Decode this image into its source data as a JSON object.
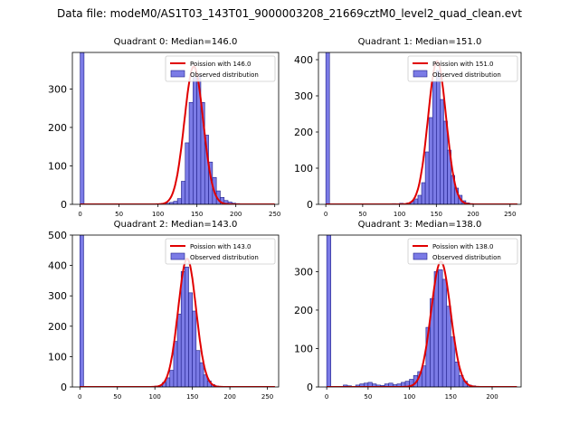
{
  "suptitle": "Data file: modeM0/AS1T03_143T01_9000003208_21669cztM0_level2_quad_clean.evt",
  "colors": {
    "bar_fill": "#7b7be6",
    "bar_edge": "#1f1f8a",
    "curve": "#e00000"
  },
  "chart_data": [
    {
      "type": "bar",
      "title": "Quadrant 0: Median=146.0",
      "median": 146.0,
      "xlim": [
        -10,
        255
      ],
      "ylim": [
        0,
        395
      ],
      "xticks": [
        0,
        50,
        100,
        150,
        200,
        250
      ],
      "yticks": [
        0,
        100,
        200,
        300
      ],
      "bin_width": 5,
      "zero_bin_value": 395,
      "bins": [
        [
          110,
          3
        ],
        [
          115,
          5
        ],
        [
          120,
          8
        ],
        [
          125,
          15
        ],
        [
          130,
          60
        ],
        [
          135,
          160
        ],
        [
          140,
          265
        ],
        [
          145,
          330
        ],
        [
          150,
          335
        ],
        [
          155,
          265
        ],
        [
          160,
          180
        ],
        [
          165,
          110
        ],
        [
          170,
          70
        ],
        [
          175,
          35
        ],
        [
          180,
          18
        ],
        [
          185,
          10
        ],
        [
          190,
          6
        ],
        [
          195,
          3
        ],
        [
          200,
          2
        ]
      ],
      "legend": [
        "Poission with 146.0",
        "Observed distribution"
      ],
      "legend_loc": "upper right"
    },
    {
      "type": "bar",
      "title": "Quadrant 1: Median=151.0",
      "median": 151.0,
      "xlim": [
        -10,
        265
      ],
      "ylim": [
        0,
        420
      ],
      "xticks": [
        0,
        50,
        100,
        150,
        200,
        250
      ],
      "yticks": [
        0,
        100,
        200,
        300,
        400
      ],
      "bin_width": 5,
      "zero_bin_value": 420,
      "bins": [
        [
          90,
          2
        ],
        [
          100,
          3
        ],
        [
          110,
          4
        ],
        [
          115,
          8
        ],
        [
          120,
          15
        ],
        [
          125,
          25
        ],
        [
          130,
          60
        ],
        [
          135,
          145
        ],
        [
          140,
          240
        ],
        [
          145,
          340
        ],
        [
          150,
          370
        ],
        [
          155,
          290
        ],
        [
          160,
          230
        ],
        [
          165,
          150
        ],
        [
          170,
          80
        ],
        [
          175,
          45
        ],
        [
          180,
          25
        ],
        [
          185,
          10
        ],
        [
          190,
          4
        ],
        [
          195,
          2
        ]
      ],
      "legend": [
        "Poission with 151.0",
        "Observed distribution"
      ],
      "legend_loc": "upper right"
    },
    {
      "type": "bar",
      "title": "Quadrant 2: Median=143.0",
      "median": 143.0,
      "xlim": [
        -10,
        265
      ],
      "ylim": [
        0,
        500
      ],
      "xticks": [
        0,
        50,
        100,
        150,
        200,
        250
      ],
      "yticks": [
        0,
        100,
        200,
        300,
        400,
        500
      ],
      "bin_width": 5,
      "zero_bin_value": 500,
      "bins": [
        [
          100,
          3
        ],
        [
          105,
          5
        ],
        [
          110,
          15
        ],
        [
          115,
          30
        ],
        [
          120,
          55
        ],
        [
          125,
          150
        ],
        [
          130,
          240
        ],
        [
          135,
          380
        ],
        [
          140,
          395
        ],
        [
          145,
          310
        ],
        [
          150,
          250
        ],
        [
          155,
          120
        ],
        [
          160,
          80
        ],
        [
          165,
          40
        ],
        [
          170,
          20
        ],
        [
          175,
          8
        ],
        [
          180,
          3
        ]
      ],
      "legend": [
        "Poission with 143.0",
        "Observed distribution"
      ],
      "legend_loc": "upper right"
    },
    {
      "type": "bar",
      "title": "Quadrant 3: Median=138.0",
      "median": 138.0,
      "xlim": [
        -10,
        235
      ],
      "ylim": [
        0,
        395
      ],
      "xticks": [
        0,
        50,
        100,
        150,
        200
      ],
      "yticks": [
        0,
        100,
        200,
        300
      ],
      "bin_width": 5,
      "zero_bin_value": 395,
      "bins": [
        [
          20,
          5
        ],
        [
          25,
          3
        ],
        [
          35,
          5
        ],
        [
          40,
          8
        ],
        [
          45,
          10
        ],
        [
          50,
          12
        ],
        [
          55,
          8
        ],
        [
          60,
          5
        ],
        [
          65,
          4
        ],
        [
          70,
          8
        ],
        [
          75,
          10
        ],
        [
          80,
          6
        ],
        [
          85,
          8
        ],
        [
          90,
          12
        ],
        [
          95,
          15
        ],
        [
          100,
          20
        ],
        [
          105,
          30
        ],
        [
          110,
          40
        ],
        [
          115,
          55
        ],
        [
          120,
          155
        ],
        [
          125,
          230
        ],
        [
          130,
          300
        ],
        [
          135,
          305
        ],
        [
          140,
          280
        ],
        [
          145,
          210
        ],
        [
          150,
          130
        ],
        [
          155,
          65
        ],
        [
          160,
          30
        ],
        [
          165,
          15
        ],
        [
          170,
          5
        ],
        [
          175,
          3
        ]
      ],
      "legend": [
        "Poission with 138.0",
        "Observed distribution"
      ],
      "legend_loc": "upper right"
    }
  ]
}
